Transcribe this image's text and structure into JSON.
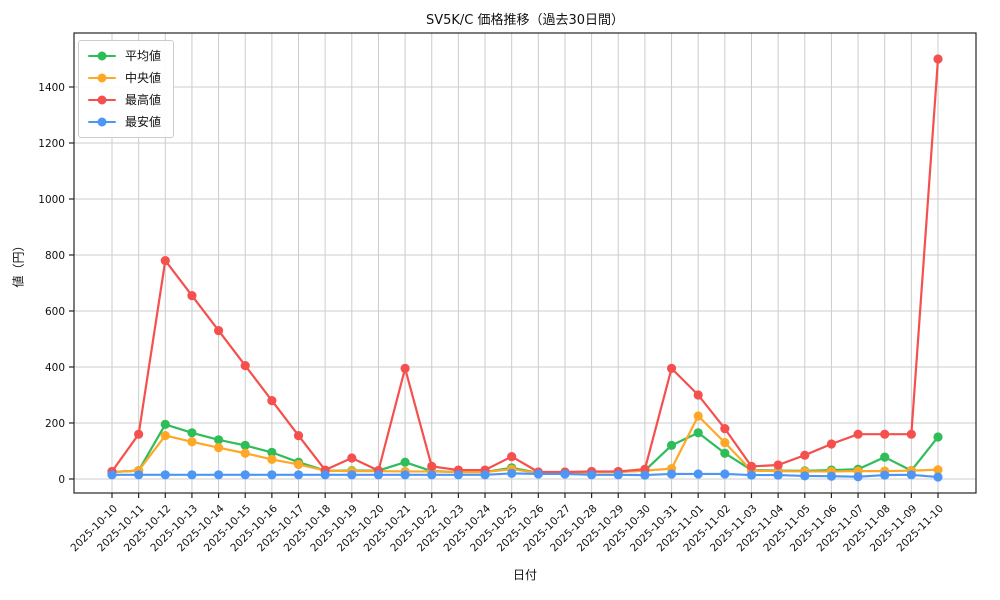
{
  "chart_data": {
    "type": "line",
    "title": "SV5K/C 価格推移（過去30日間）",
    "xlabel": "日付",
    "ylabel": "値（円）",
    "grid": true,
    "legend_position": "upper left",
    "yticks": [
      0,
      200,
      400,
      600,
      800,
      1000,
      1200,
      1400
    ],
    "ylim": [
      0,
      1500
    ],
    "x": [
      "2025-10-10",
      "2025-10-11",
      "2025-10-12",
      "2025-10-13",
      "2025-10-14",
      "2025-10-15",
      "2025-10-16",
      "2025-10-17",
      "2025-10-18",
      "2025-10-19",
      "2025-10-20",
      "2025-10-21",
      "2025-10-22",
      "2025-10-23",
      "2025-10-24",
      "2025-10-25",
      "2025-10-26",
      "2025-10-27",
      "2025-10-28",
      "2025-10-29",
      "2025-10-30",
      "2025-10-31",
      "2025-11-01",
      "2025-11-02",
      "2025-11-03",
      "2025-11-04",
      "2025-11-05",
      "2025-11-06",
      "2025-11-07",
      "2025-11-08",
      "2025-11-09",
      "2025-11-10"
    ],
    "series": [
      {
        "name": "平均値",
        "color": "#2ebd59",
        "values": [
          25,
          30,
          195,
          165,
          140,
          120,
          95,
          60,
          30,
          30,
          30,
          60,
          28,
          25,
          25,
          40,
          22,
          22,
          25,
          25,
          30,
          120,
          165,
          92,
          32,
          30,
          29,
          32,
          35,
          78,
          30,
          150
        ]
      },
      {
        "name": "中央値",
        "color": "#ffa726",
        "values": [
          25,
          30,
          155,
          133,
          112,
          92,
          70,
          52,
          30,
          28,
          28,
          27,
          27,
          25,
          25,
          35,
          22,
          22,
          25,
          25,
          30,
          37,
          225,
          130,
          30,
          28,
          27,
          27,
          28,
          28,
          30,
          33
        ]
      },
      {
        "name": "最高値",
        "color": "#f5504e",
        "values": [
          27,
          160,
          780,
          655,
          530,
          405,
          280,
          155,
          32,
          75,
          30,
          395,
          45,
          32,
          32,
          80,
          25,
          25,
          27,
          27,
          35,
          395,
          300,
          180,
          45,
          50,
          85,
          125,
          160,
          160,
          160,
          1500
        ]
      },
      {
        "name": "最安値",
        "color": "#4d96f5",
        "values": [
          15,
          15,
          15,
          15,
          15,
          15,
          15,
          15,
          15,
          15,
          15,
          15,
          15,
          15,
          15,
          20,
          18,
          18,
          15,
          15,
          14,
          18,
          18,
          18,
          14,
          14,
          11,
          10,
          8,
          14,
          15,
          7
        ]
      }
    ]
  }
}
